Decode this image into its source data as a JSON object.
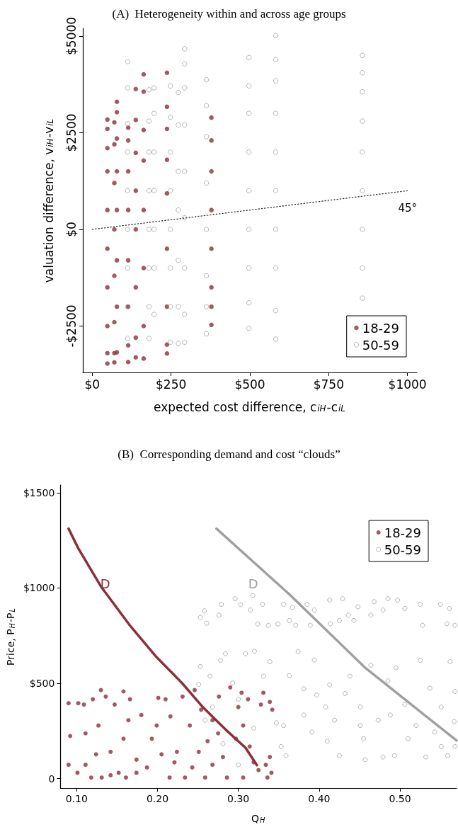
{
  "chart_data": [
    {
      "type": "scatter",
      "title": "(A)  Heterogeneity within and across age groups",
      "xlabel": "expected cost difference, c$_{iH}$-c$_{iL}$",
      "ylabel": "valuation difference, v$_{iH}$-v$_{iL}$",
      "xlim": [
        -30,
        1030
      ],
      "ylim": [
        -3700,
        5200
      ],
      "xticks": [
        {
          "value": 0,
          "label": "$0"
        },
        {
          "value": 250,
          "label": "$250"
        },
        {
          "value": 500,
          "label": "$500"
        },
        {
          "value": 750,
          "label": "$750"
        },
        {
          "value": 1000,
          "label": "$1000"
        }
      ],
      "yticks": [
        {
          "value": -2500,
          "label": "-$2500"
        },
        {
          "value": 0,
          "label": "$0"
        },
        {
          "value": 2500,
          "label": "$2500"
        },
        {
          "value": 5000,
          "label": "$5000"
        }
      ],
      "legend": "bottom right",
      "grid": false,
      "marker": "circle",
      "series": [
        {
          "name": "18-29",
          "color": "#8b2f3a",
          "x": [
            48,
            48,
            48,
            48,
            48,
            48,
            48,
            48,
            48,
            48,
            70,
            70,
            70,
            70,
            70,
            70,
            70,
            70,
            78,
            78,
            78,
            78,
            78,
            78,
            78,
            78,
            114,
            114,
            114,
            114,
            114,
            114,
            114,
            114,
            138,
            138,
            138,
            138,
            138,
            138,
            138,
            138,
            163,
            163,
            163,
            163,
            163,
            163,
            163,
            163,
            237,
            237,
            237,
            237,
            237,
            237,
            237,
            237,
            237,
            378,
            378,
            378,
            378,
            378,
            378,
            378,
            378
          ],
          "values": [
            2840,
            2600,
            2100,
            1500,
            500,
            -500,
            -1500,
            -2500,
            -3200,
            -3470,
            2770,
            2200,
            1200,
            0,
            -1200,
            -2400,
            -3200,
            -3440,
            3300,
            3030,
            2350,
            1500,
            500,
            -800,
            -2000,
            -3180,
            2630,
            2300,
            1500,
            500,
            -800,
            -2000,
            -3000,
            -3430,
            3630,
            2830,
            1980,
            1000,
            0,
            -1500,
            -2800,
            -3310,
            4010,
            3560,
            2570,
            1780,
            500,
            -1000,
            -2500,
            -3340,
            4050,
            3170,
            2600,
            1800,
            930,
            -500,
            -2000,
            -2980,
            -3210,
            2890,
            2300,
            1500,
            500,
            -500,
            -1500,
            -2000,
            -2470
          ]
        },
        {
          "name": "50-59",
          "color": "#a0a0a0",
          "x": [
            112,
            112,
            112,
            112,
            112,
            112,
            112,
            112,
            112,
            180,
            180,
            180,
            180,
            180,
            180,
            180,
            180,
            196,
            196,
            196,
            196,
            196,
            196,
            196,
            248,
            248,
            248,
            248,
            248,
            248,
            248,
            248,
            273,
            273,
            273,
            273,
            273,
            273,
            273,
            293,
            293,
            293,
            293,
            293,
            293,
            293,
            293,
            293,
            362,
            362,
            362,
            362,
            362,
            362,
            362,
            362,
            497,
            497,
            497,
            497,
            497,
            497,
            497,
            497,
            497,
            582,
            582,
            582,
            582,
            582,
            582,
            582,
            582,
            582,
            582,
            857,
            857,
            857,
            857,
            857,
            857,
            857,
            857,
            857
          ],
          "values": [
            4340,
            3660,
            2730,
            2000,
            1000,
            0,
            -1000,
            -2000,
            -2820,
            3610,
            2800,
            2000,
            1000,
            0,
            -1000,
            -2000,
            -2820,
            3660,
            3000,
            2000,
            1000,
            0,
            -1000,
            -2200,
            3710,
            2900,
            2000,
            1000,
            0,
            -1000,
            -2000,
            -2920,
            3540,
            2700,
            1500,
            500,
            -800,
            -2000,
            -2950,
            4670,
            4280,
            3660,
            2700,
            1500,
            300,
            -1000,
            -2200,
            -2920,
            3870,
            3200,
            2400,
            1200,
            0,
            -1200,
            -2000,
            -2700,
            4440,
            3710,
            3000,
            2000,
            1000,
            0,
            -1000,
            -1900,
            -2560,
            5010,
            4390,
            3840,
            3000,
            2000,
            1000,
            0,
            -1000,
            -2100,
            -2840,
            4500,
            4050,
            3560,
            2800,
            2000,
            1000,
            0,
            -1000,
            -1780
          ]
        },
        {
          "type": "line",
          "color": "#333333",
          "line_style": "dotted",
          "marker": "none",
          "x": [
            0,
            1000
          ],
          "values": [
            0,
            1000
          ]
        }
      ],
      "annotations": [
        "45°"
      ]
    },
    {
      "type": "scatter",
      "title": "(B)  Corresponding demand and cost “clouds”",
      "xlabel": "Q$_{H}$",
      "ylabel": "Price, P$_{H}$-P$_{L}$",
      "xlim": [
        0.08,
        0.57
      ],
      "ylim": [
        -50,
        1540
      ],
      "xticks": [
        {
          "value": 0.1,
          "label": "0.10"
        },
        {
          "value": 0.2,
          "label": "0.20"
        },
        {
          "value": 0.3,
          "label": "0.30"
        },
        {
          "value": 0.4,
          "label": "0.40"
        },
        {
          "value": 0.5,
          "label": "0.50"
        }
      ],
      "yticks": [
        0,
        {
          "value": 500,
          "label": "$500"
        },
        {
          "value": 1000,
          "label": "$1000"
        },
        {
          "value": 1500,
          "label": "$1500"
        }
      ],
      "legend": "top right",
      "grid": false,
      "marker": "circle",
      "series": [
        {
          "name": "18-29",
          "color": "#8b2f3a",
          "x": [
            0.09,
            0.09,
            0.092,
            0.102,
            0.101,
            0.109,
            0.111,
            0.118,
            0.12,
            0.124,
            0.13,
            0.131,
            0.136,
            0.142,
            0.147,
            0.152,
            0.158,
            0.161,
            0.164,
            0.166,
            0.174,
            0.18,
            0.187,
            0.193,
            0.201,
            0.205,
            0.21,
            0.215,
            0.216,
            0.224,
            0.231,
            0.234,
            0.24,
            0.246,
            0.243,
            0.251,
            0.254,
            0.259,
            0.262,
            0.268,
            0.275,
            0.276,
            0.281,
            0.286,
            0.29,
            0.297,
            0.3,
            0.304,
            0.306,
            0.312,
            0.314,
            0.319,
            0.325,
            0.328,
            0.331,
            0.334,
            0.339,
            0.341,
            0.342,
            0.336,
            0.339,
            0.127,
            0.158,
            0.199,
            0.268,
            0.306,
            0.111,
            0.174,
            0.142,
            0.221
          ],
          "values": [
            395,
            72,
            223,
            395,
            30,
            388,
            237,
            5,
            416,
            127,
            464,
            5,
            430,
            140,
            388,
            30,
            457,
            5,
            306,
            416,
            99,
            333,
            58,
            209,
            423,
            127,
            416,
            5,
            326,
            140,
            430,
            5,
            278,
            464,
            58,
            140,
            361,
            5,
            196,
            72,
            237,
            430,
            113,
            5,
            478,
            209,
            375,
            450,
            5,
            416,
            168,
            85,
            44,
            388,
            450,
            72,
            402,
            30,
            361,
            5,
            113,
            278,
            209,
            278,
            306,
            278,
            72,
            30,
            17,
            85
          ]
        },
        {
          "name": "50-59",
          "color": "#a0a0a0",
          "x": [
            0.253,
            0.258,
            0.261,
            0.276,
            0.279,
            0.296,
            0.303,
            0.315,
            0.318,
            0.324,
            0.33,
            0.337,
            0.349,
            0.356,
            0.367,
            0.371,
            0.385,
            0.389,
            0.394,
            0.413,
            0.414,
            0.429,
            0.436,
            0.443,
            0.448,
            0.464,
            0.468,
            0.479,
            0.485,
            0.497,
            0.506,
            0.525,
            0.528,
            0.55,
            0.558,
            0.568,
            0.561,
            0.425,
            0.363,
            0.251,
            0.253,
            0.259,
            0.265,
            0.278,
            0.284,
            0.293,
            0.3,
            0.309,
            0.32,
            0.331,
            0.339,
            0.347,
            0.353,
            0.359,
            0.363,
            0.374,
            0.381,
            0.391,
            0.394,
            0.397,
            0.408,
            0.413,
            0.419,
            0.425,
            0.432,
            0.438,
            0.451,
            0.455,
            0.464,
            0.473,
            0.479,
            0.485,
            0.493,
            0.495,
            0.506,
            0.51,
            0.525,
            0.532,
            0.537,
            0.543,
            0.551,
            0.559,
            0.562,
            0.567,
            0.568,
            0.568,
            0.268,
            0.281,
            0.3,
            0.319,
            0.356,
            0.381,
            0.41,
            0.451,
            0.488,
            0.52,
            0.551,
            0.457
          ],
          "values": [
            845,
            880,
            815,
            857,
            914,
            943,
            912,
            884,
            960,
            811,
            914,
            804,
            811,
            914,
            898,
            804,
            914,
            804,
            884,
            936,
            812,
            943,
            857,
            829,
            901,
            857,
            928,
            884,
            943,
            936,
            892,
            914,
            804,
            914,
            812,
            804,
            892,
            829,
            829,
            494,
            588,
            306,
            537,
            620,
            655,
            501,
            416,
            655,
            668,
            537,
            613,
            292,
            168,
            120,
            540,
            666,
            471,
            244,
            622,
            438,
            375,
            492,
            306,
            120,
            446,
            537,
            375,
            209,
            595,
            306,
            113,
            512,
            120,
            581,
            388,
            209,
            620,
            113,
            474,
            244,
            375,
            120,
            613,
            299,
            457,
            168,
            375,
            182,
            72,
            264,
            278,
            333,
            196,
            278,
            333,
            278,
            168,
            99
          ]
        },
        {
          "type": "line",
          "name": "D",
          "color": "#8b2f3a",
          "line_style": "solid",
          "marker": "none",
          "x": [
            0.09,
            0.102,
            0.13,
            0.165,
            0.199,
            0.231,
            0.256,
            0.284,
            0.309,
            0.323
          ],
          "values": [
            1311,
            1208,
            1008,
            808,
            636,
            498,
            375,
            258,
            161,
            70
          ]
        },
        {
          "type": "line",
          "name": "D",
          "color": "#a0a0a0",
          "line_style": "solid",
          "marker": "none",
          "x": [
            0.273,
            0.363,
            0.457,
            0.57
          ],
          "values": [
            1311,
            967,
            581,
            199
          ]
        }
      ]
    }
  ]
}
